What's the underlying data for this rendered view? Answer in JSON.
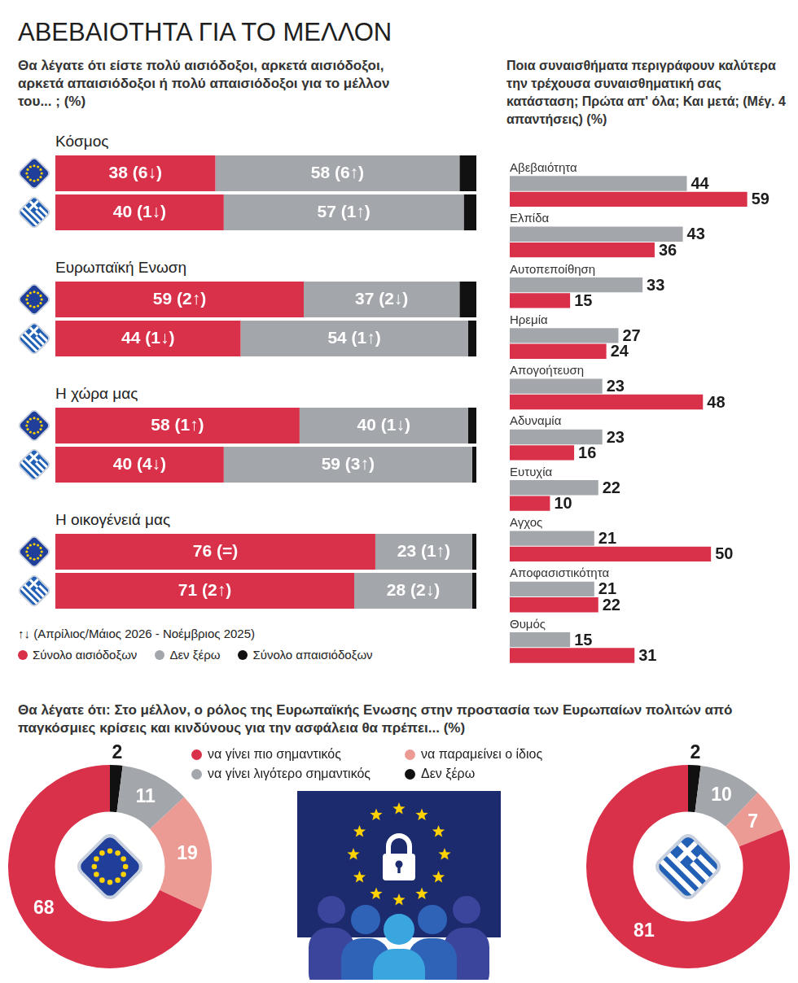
{
  "chart_data": [
    {
      "type": "bar",
      "title": "ΑΒΕΒΑΙΟΤΗΤΑ ΓΙΑ ΤΟ ΜΕΛΛΟΝ",
      "subtitle": "Θα λέγατε ότι είστε πολύ αισιόδοξοι, αρκετά αισιόδοξοι, αρκετά απαισιόδοξοι ή πολύ απαισιόδοξοι για το μέλλον του... ; (%)",
      "annotation": "↑↓ (Απρίλιος/Μάιος 2026 - Νοέμβριος 2025)",
      "orientation": "horizontal",
      "stacked": true,
      "data_labels": true,
      "tick_labels": false,
      "legend": "bottom",
      "xlim": [
        0,
        100
      ],
      "panels": [
        {
          "title": "Κόσμος",
          "categories": [
            null,
            null
          ],
          "series": [
            {
              "name": "Σύνολο αισιόδοξων",
              "color": "#d9314a",
              "values": [
                38,
                40
              ],
              "value_labels": [
                "38 (6↓)",
                "40 (1↓)"
              ]
            },
            {
              "name": "Δεν ξέρω",
              "color": "#a3a6ab",
              "values": [
                58,
                57
              ],
              "value_labels": [
                "58 (6↑)",
                "57 (1↑)"
              ]
            },
            {
              "name": "Σύνολο απαισιόδοξων",
              "color": "#111111",
              "values": [
                4,
                3
              ]
            }
          ]
        },
        {
          "title": "Ευρωπαϊκή Ενωση",
          "categories": [
            null,
            null
          ],
          "series": [
            {
              "name": "Σύνολο αισιόδοξων",
              "color": "#d9314a",
              "values": [
                59,
                44
              ],
              "value_labels": [
                "59 (2↑)",
                "44 (1↓)"
              ]
            },
            {
              "name": "Δεν ξέρω",
              "color": "#a3a6ab",
              "values": [
                37,
                54
              ],
              "value_labels": [
                "37 (2↓)",
                "54 (1↑)"
              ]
            },
            {
              "name": "Σύνολο απαισιόδοξων",
              "color": "#111111",
              "values": [
                4,
                2
              ]
            }
          ]
        },
        {
          "title": "Η χώρα μας",
          "categories": [
            null,
            null
          ],
          "series": [
            {
              "name": "Σύνολο αισιόδοξων",
              "color": "#d9314a",
              "values": [
                58,
                40
              ],
              "value_labels": [
                "58 (1↑)",
                "40 (4↓)"
              ]
            },
            {
              "name": "Δεν ξέρω",
              "color": "#a3a6ab",
              "values": [
                40,
                59
              ],
              "value_labels": [
                "40 (1↓)",
                "59 (3↑)"
              ]
            },
            {
              "name": "Σύνολο απαισιόδοξων",
              "color": "#111111",
              "values": [
                2,
                1
              ]
            }
          ]
        },
        {
          "title": "Η οικογένειά μας",
          "categories": [
            null,
            null
          ],
          "series": [
            {
              "name": "Σύνολο αισιόδοξων",
              "color": "#d9314a",
              "values": [
                76,
                71
              ],
              "value_labels": [
                "76 (=)",
                "71 (2↑)"
              ]
            },
            {
              "name": "Δεν ξέρω",
              "color": "#a3a6ab",
              "values": [
                23,
                28
              ],
              "value_labels": [
                "23 (1↑)",
                "28 (2↓)"
              ]
            },
            {
              "name": "Σύνολο απαισιόδοξων",
              "color": "#111111",
              "values": [
                1,
                1
              ]
            }
          ]
        }
      ]
    },
    {
      "type": "bar",
      "title": "Ποια συναισθήματα περιγράφουν καλύτερα την τρέχουσα συναισθηματική σας κατάσταση; Πρώτα απ' όλα; Και μετά; (Μέγ. 4 απαντήσεις) (%)",
      "orientation": "horizontal",
      "data_labels": true,
      "tick_labels": false,
      "xlim": [
        0,
        70
      ],
      "categories": [
        "Αβεβαιότητα",
        "Ελπίδα",
        "Αυτοπεποίθηση",
        "Ηρεμία",
        "Απογοήτευση",
        "Αδυναμία",
        "Ευτυχία",
        "Αγχος",
        "Αποφασιστικότητα",
        "Θυμός"
      ],
      "series": [
        {
          "color": "#a3a6ab",
          "values": [
            44,
            43,
            33,
            27,
            23,
            23,
            22,
            21,
            21,
            15
          ]
        },
        {
          "color": "#d9314a",
          "values": [
            59,
            36,
            15,
            24,
            48,
            16,
            10,
            50,
            22,
            31
          ]
        }
      ]
    },
    {
      "type": "doughnut",
      "title": "Θα λέγατε ότι: Στο μέλλον, ο ρόλος της Ευρωπαϊκής Ενωσης στην προστασία των Ευρωπαίων πολιτών από παγκόσμιες κρίσεις και κινδύνους για την ασφάλεια θα πρέπει... (%)",
      "data_labels": true,
      "legend": "top",
      "categories": [
        "να γίνει πιο σημαντικός",
        "να παραμείνει ο ίδιος",
        "να γίνει λιγότερο σημαντικός",
        "Δεν ξέρω"
      ],
      "colors": [
        "#d9314a",
        "#eb9b94",
        "#a3a6ab",
        "#111111"
      ],
      "panels": [
        {
          "values": [
            68,
            19,
            11,
            2
          ]
        },
        {
          "values": [
            81,
            7,
            10,
            2
          ]
        }
      ]
    }
  ]
}
